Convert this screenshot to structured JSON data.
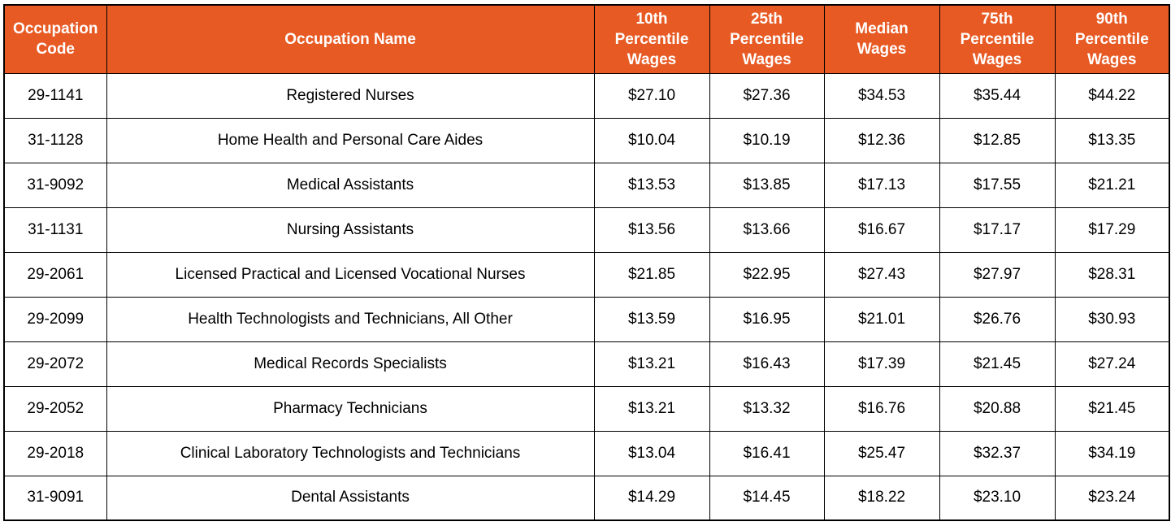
{
  "colors": {
    "header_bg": "#E85A24",
    "header_text": "#FFFFFF",
    "body_text": "#000000",
    "border": "#000000"
  },
  "chart_data": {
    "type": "table",
    "columns": [
      "Occupation Code",
      "Occupation Name",
      "10th Percentile Wages",
      "25th Percentile Wages",
      "Median Wages",
      "75th Percentile Wages",
      "90th Percentile Wages"
    ],
    "header_display": [
      "Occupation\nCode",
      "Occupation Name",
      "10th\nPercentile\nWages",
      "25th\nPercentile\nWages",
      "Median\nWages",
      "75th\nPercentile\nWages",
      "90th\nPercentile\nWages"
    ],
    "rows": [
      [
        "29-1141",
        "Registered Nurses",
        "$27.10",
        "$27.36",
        "$34.53",
        "$35.44",
        "$44.22"
      ],
      [
        "31-1128",
        "Home Health and Personal Care Aides",
        "$10.04",
        "$10.19",
        "$12.36",
        "$12.85",
        "$13.35"
      ],
      [
        "31-9092",
        "Medical Assistants",
        "$13.53",
        "$13.85",
        "$17.13",
        "$17.55",
        "$21.21"
      ],
      [
        "31-1131",
        "Nursing Assistants",
        "$13.56",
        "$13.66",
        "$16.67",
        "$17.17",
        "$17.29"
      ],
      [
        "29-2061",
        "Licensed Practical and Licensed Vocational Nurses",
        "$21.85",
        "$22.95",
        "$27.43",
        "$27.97",
        "$28.31"
      ],
      [
        "29-2099",
        "Health Technologists and Technicians, All Other",
        "$13.59",
        "$16.95",
        "$21.01",
        "$26.76",
        "$30.93"
      ],
      [
        "29-2072",
        "Medical Records Specialists",
        "$13.21",
        "$16.43",
        "$17.39",
        "$21.45",
        "$27.24"
      ],
      [
        "29-2052",
        "Pharmacy Technicians",
        "$13.21",
        "$13.32",
        "$16.76",
        "$20.88",
        "$21.45"
      ],
      [
        "29-2018",
        "Clinical Laboratory Technologists and Technicians",
        "$13.04",
        "$16.41",
        "$25.47",
        "$32.37",
        "$34.19"
      ],
      [
        "31-9091",
        "Dental Assistants",
        "$14.29",
        "$14.45",
        "$18.22",
        "$23.10",
        "$23.24"
      ]
    ]
  }
}
